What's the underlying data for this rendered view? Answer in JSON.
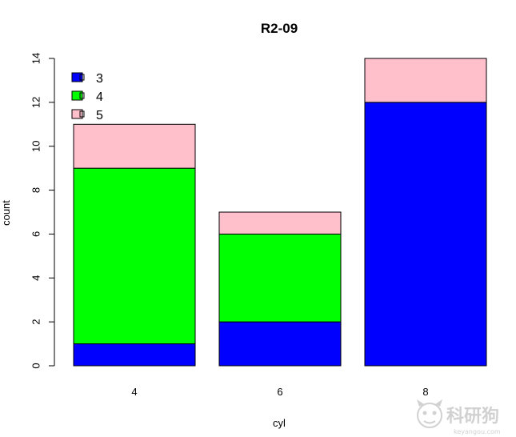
{
  "chart_data": {
    "type": "bar",
    "stacked": true,
    "title": "R2-09",
    "xlabel": "cyl",
    "ylabel": "count",
    "categories": [
      "4",
      "6",
      "8"
    ],
    "series": [
      {
        "name": "3",
        "color": "#0000FF",
        "values": [
          1,
          2,
          12
        ]
      },
      {
        "name": "4",
        "color": "#00FF00",
        "values": [
          8,
          4,
          0
        ]
      },
      {
        "name": "5",
        "color": "#FFC0CB",
        "values": [
          2,
          1,
          2
        ]
      }
    ],
    "ylim": [
      0,
      14
    ],
    "yticks": [
      0,
      2,
      4,
      6,
      8,
      10,
      12,
      14
    ],
    "legend_position": "top-left",
    "grid": false
  },
  "watermark": {
    "brand": "科研狗",
    "domain": "keyangou.com"
  }
}
